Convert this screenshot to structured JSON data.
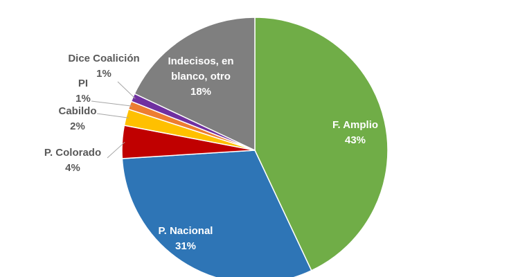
{
  "chart_data": {
    "type": "pie",
    "categories": [
      "F. Amplio",
      "P. Nacional",
      "P. Colorado",
      "Cabildo",
      "PI",
      "Dice Coalición",
      "Indecisos, en blanco, otro"
    ],
    "values": [
      43,
      31,
      4,
      2,
      1,
      1,
      18
    ],
    "value_labels": [
      "43%",
      "31%",
      "4%",
      "2%",
      "1%",
      "1%",
      "18%"
    ],
    "colors": [
      "#70ad47",
      "#2e75b6",
      "#c00000",
      "#ffc000",
      "#ed7d31",
      "#7030a0",
      "#7f7f7f"
    ]
  }
}
